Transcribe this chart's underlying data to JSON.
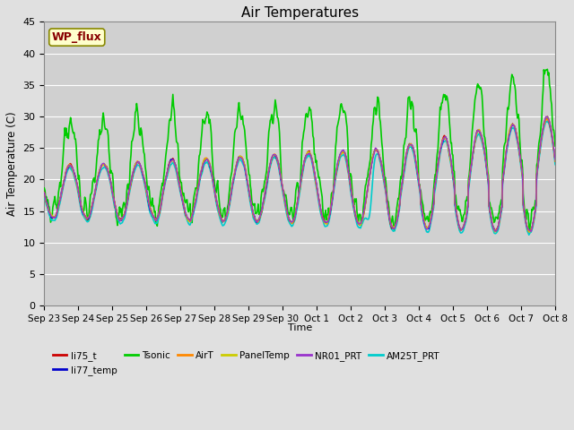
{
  "title": "Air Temperatures",
  "ylabel": "Air Temperature (C)",
  "xlabel": "Time",
  "ylim": [
    0,
    45
  ],
  "background_outer": "#e0e0e0",
  "background_inner": "#d0d0d0",
  "grid_color": "#ffffff",
  "annotation_text": "WP_flux",
  "annotation_bg": "#ffffcc",
  "annotation_border": "#888800",
  "annotation_text_color": "#880000",
  "series": [
    {
      "name": "li75_t",
      "color": "#cc0000",
      "lw": 1.0,
      "zorder": 6
    },
    {
      "name": "li77_temp",
      "color": "#0000cc",
      "lw": 1.0,
      "zorder": 6
    },
    {
      "name": "Tsonic",
      "color": "#00cc00",
      "lw": 1.2,
      "zorder": 4
    },
    {
      "name": "AirT",
      "color": "#ff8800",
      "lw": 1.0,
      "zorder": 6
    },
    {
      "name": "PanelTemp",
      "color": "#cccc00",
      "lw": 1.0,
      "zorder": 6
    },
    {
      "name": "NR01_PRT",
      "color": "#9933cc",
      "lw": 1.0,
      "zorder": 6
    },
    {
      "name": "AM25T_PRT",
      "color": "#00cccc",
      "lw": 1.2,
      "zorder": 5
    }
  ],
  "xtick_labels": [
    "Sep 23",
    "Sep 24",
    "Sep 25",
    "Sep 26",
    "Sep 27",
    "Sep 28",
    "Sep 29",
    "Sep 30",
    "Oct 1",
    "Oct 2",
    "Oct 3",
    "Oct 4",
    "Oct 5",
    "Oct 6",
    "Oct 7",
    "Oct 8"
  ],
  "ytick_values": [
    0,
    5,
    10,
    15,
    20,
    25,
    30,
    35,
    40,
    45
  ]
}
